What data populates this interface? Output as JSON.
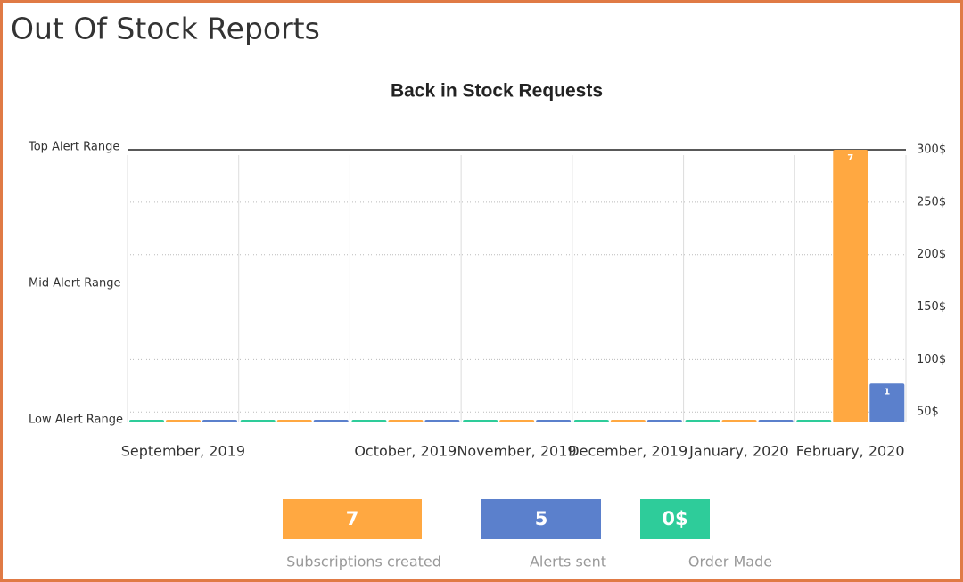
{
  "header": {
    "title": "Out Of Stock Reports"
  },
  "chart_data": {
    "type": "bar",
    "title": "Back in Stock Requests",
    "categories": [
      "September, 2019",
      null,
      "October, 2019",
      "November, 2019",
      "December, 2019",
      "January, 2020",
      "February, 2020"
    ],
    "series": [
      {
        "name": "Order Made",
        "color": "#2ecc9a",
        "values": [
          0,
          0,
          0,
          0,
          0,
          0,
          0
        ]
      },
      {
        "name": "Subscriptions created",
        "color": "#ffa841",
        "values": [
          0,
          0,
          0,
          0,
          0,
          0,
          7
        ]
      },
      {
        "name": "Alerts sent",
        "color": "#5b80cc",
        "values": [
          0,
          0,
          0,
          0,
          0,
          0,
          1
        ]
      }
    ],
    "ylim": [
      0,
      7
    ],
    "yticks": [
      {
        "value": 7,
        "label": "Top Alert Range"
      },
      {
        "value": 3.5,
        "label": "Mid Alert Range"
      },
      {
        "value": 0,
        "label": "Low Alert Range"
      }
    ],
    "y2lim": [
      40,
      300
    ],
    "y2ticks": [
      {
        "value": 300,
        "label": "300$"
      },
      {
        "value": 250,
        "label": "250$"
      },
      {
        "value": 200,
        "label": "200$"
      },
      {
        "value": 150,
        "label": "150$"
      },
      {
        "value": 100,
        "label": "100$"
      },
      {
        "value": 50,
        "label": "50$"
      }
    ],
    "grid": true
  },
  "summary": [
    7,
    5,
    "0$"
  ]
}
